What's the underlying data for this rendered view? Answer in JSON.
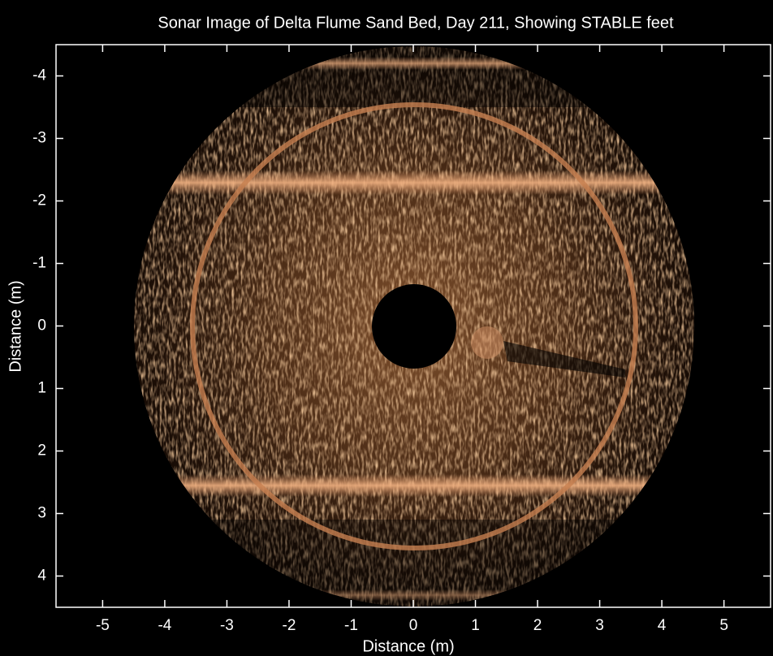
{
  "chart_data": {
    "type": "image",
    "title": "Sonar Image of Delta Flume Sand Bed, Day 211, Showing STABLE feet",
    "xlabel": "Distance (m)",
    "ylabel": "Distance (m)",
    "xlim": [
      -5.75,
      5.75
    ],
    "ylim": [
      -4.5,
      4.5
    ],
    "y_reversed": true,
    "xticks": [
      -5,
      -4,
      -3,
      -2,
      -1,
      0,
      1,
      2,
      3,
      4,
      5
    ],
    "yticks": [
      -4,
      -3,
      -2,
      -1,
      0,
      1,
      2,
      3,
      4
    ],
    "color": "#d98c50"
  }
}
